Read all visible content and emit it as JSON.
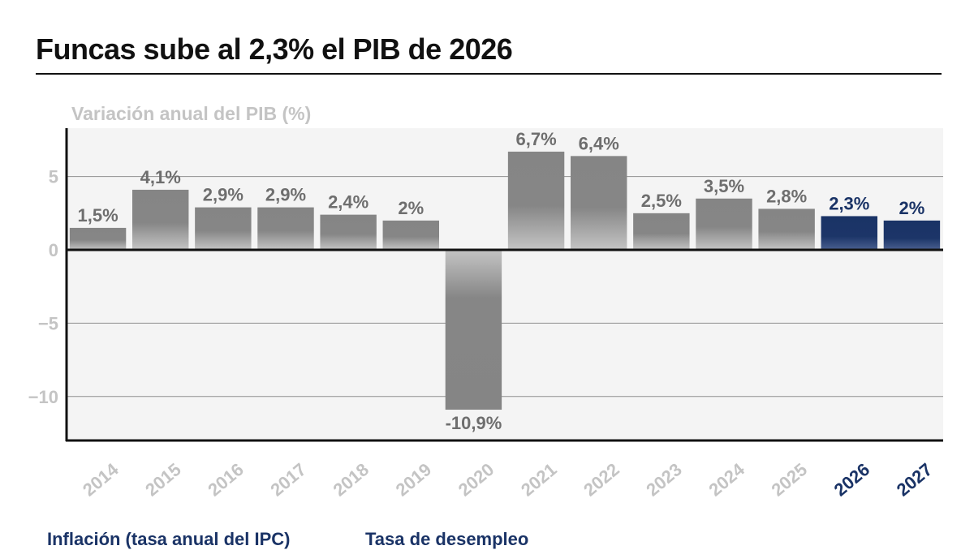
{
  "header": {
    "title": "Funcas sube al 2,3% el PIB de 2026"
  },
  "chart_data": {
    "type": "bar",
    "title": "Variación anual del PIB (%)",
    "xlabel": "",
    "ylabel": "",
    "ylim": [
      -13,
      8.3
    ],
    "yticks": [
      5,
      0,
      -5,
      -10
    ],
    "ytick_labels": [
      "5",
      "0",
      "−5",
      "−10"
    ],
    "grid": true,
    "categories": [
      "2014",
      "2015",
      "2016",
      "2017",
      "2018",
      "2019",
      "2020",
      "2021",
      "2022",
      "2023",
      "2024",
      "2025",
      "2026",
      "2027"
    ],
    "values": [
      1.5,
      4.1,
      2.9,
      2.9,
      2.4,
      2.0,
      -10.9,
      6.7,
      6.4,
      2.5,
      3.5,
      2.8,
      2.3,
      2.0
    ],
    "value_labels": [
      "1,5%",
      "4,1%",
      "2,9%",
      "2,9%",
      "2,4%",
      "2%",
      "-10,9%",
      "6,7%",
      "6,4%",
      "2,5%",
      "3,5%",
      "2,8%",
      "2,3%",
      "2%"
    ],
    "forecast": [
      false,
      false,
      false,
      false,
      false,
      false,
      false,
      false,
      false,
      false,
      false,
      false,
      true,
      true
    ],
    "colors": {
      "historical": "#858585",
      "historical_fade": "#bdbdbd",
      "forecast": "#1a3366",
      "forecast_fade": "#5a6f99",
      "historical_label": "#6e6e6e",
      "forecast_label": "#1a3366",
      "axis_tick": "#c4c4c4",
      "plot_bg": "#f4f4f4",
      "grid": "#8f8f8f"
    }
  },
  "sections": {
    "inflation_label": "Inflación (tasa anual del IPC)",
    "unemployment_label": "Tasa de desempleo"
  }
}
